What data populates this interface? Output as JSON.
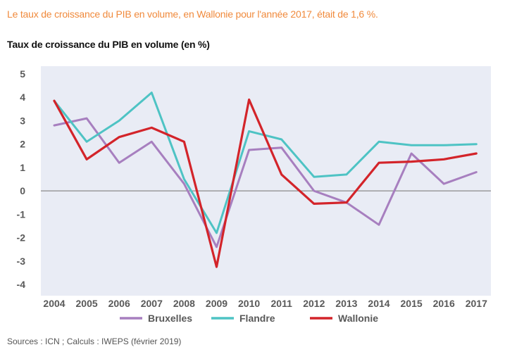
{
  "headline": "Le taux de croissance du PIB en volume, en Wallonie pour l'année 2017, était de 1,6 %.",
  "source": "Sources : ICN ; Calculs : IWEPS (février 2019)",
  "chart_data": {
    "type": "line",
    "title": "Taux de croissance du PIB en volume (en %)",
    "xlabel": "",
    "ylabel": "",
    "categories": [
      "2004",
      "2005",
      "2006",
      "2007",
      "2008",
      "2009",
      "2010",
      "2011",
      "2012",
      "2013",
      "2014",
      "2015",
      "2016",
      "2017"
    ],
    "ylim": [
      -4,
      5
    ],
    "yticks": [
      5,
      4,
      3,
      2,
      1,
      0,
      -1,
      -2,
      -3,
      -4
    ],
    "grid": false,
    "background": "#e9ecf5",
    "legend_position": "bottom",
    "series": [
      {
        "name": "Bruxelles",
        "color": "#a77fbf",
        "values": [
          2.8,
          3.1,
          1.2,
          2.1,
          0.3,
          -2.4,
          1.75,
          1.85,
          0.0,
          -0.5,
          -1.45,
          1.6,
          0.3,
          0.8
        ]
      },
      {
        "name": "Flandre",
        "color": "#4ec3c4",
        "values": [
          3.85,
          2.1,
          3.0,
          4.2,
          0.5,
          -1.8,
          2.55,
          2.2,
          0.6,
          0.7,
          2.1,
          1.95,
          1.95,
          2.0
        ]
      },
      {
        "name": "Wallonie",
        "color": "#d3242a",
        "values": [
          3.85,
          1.35,
          2.3,
          2.7,
          2.1,
          -3.25,
          3.9,
          0.7,
          -0.55,
          -0.5,
          1.2,
          1.25,
          1.35,
          1.6
        ]
      }
    ]
  }
}
